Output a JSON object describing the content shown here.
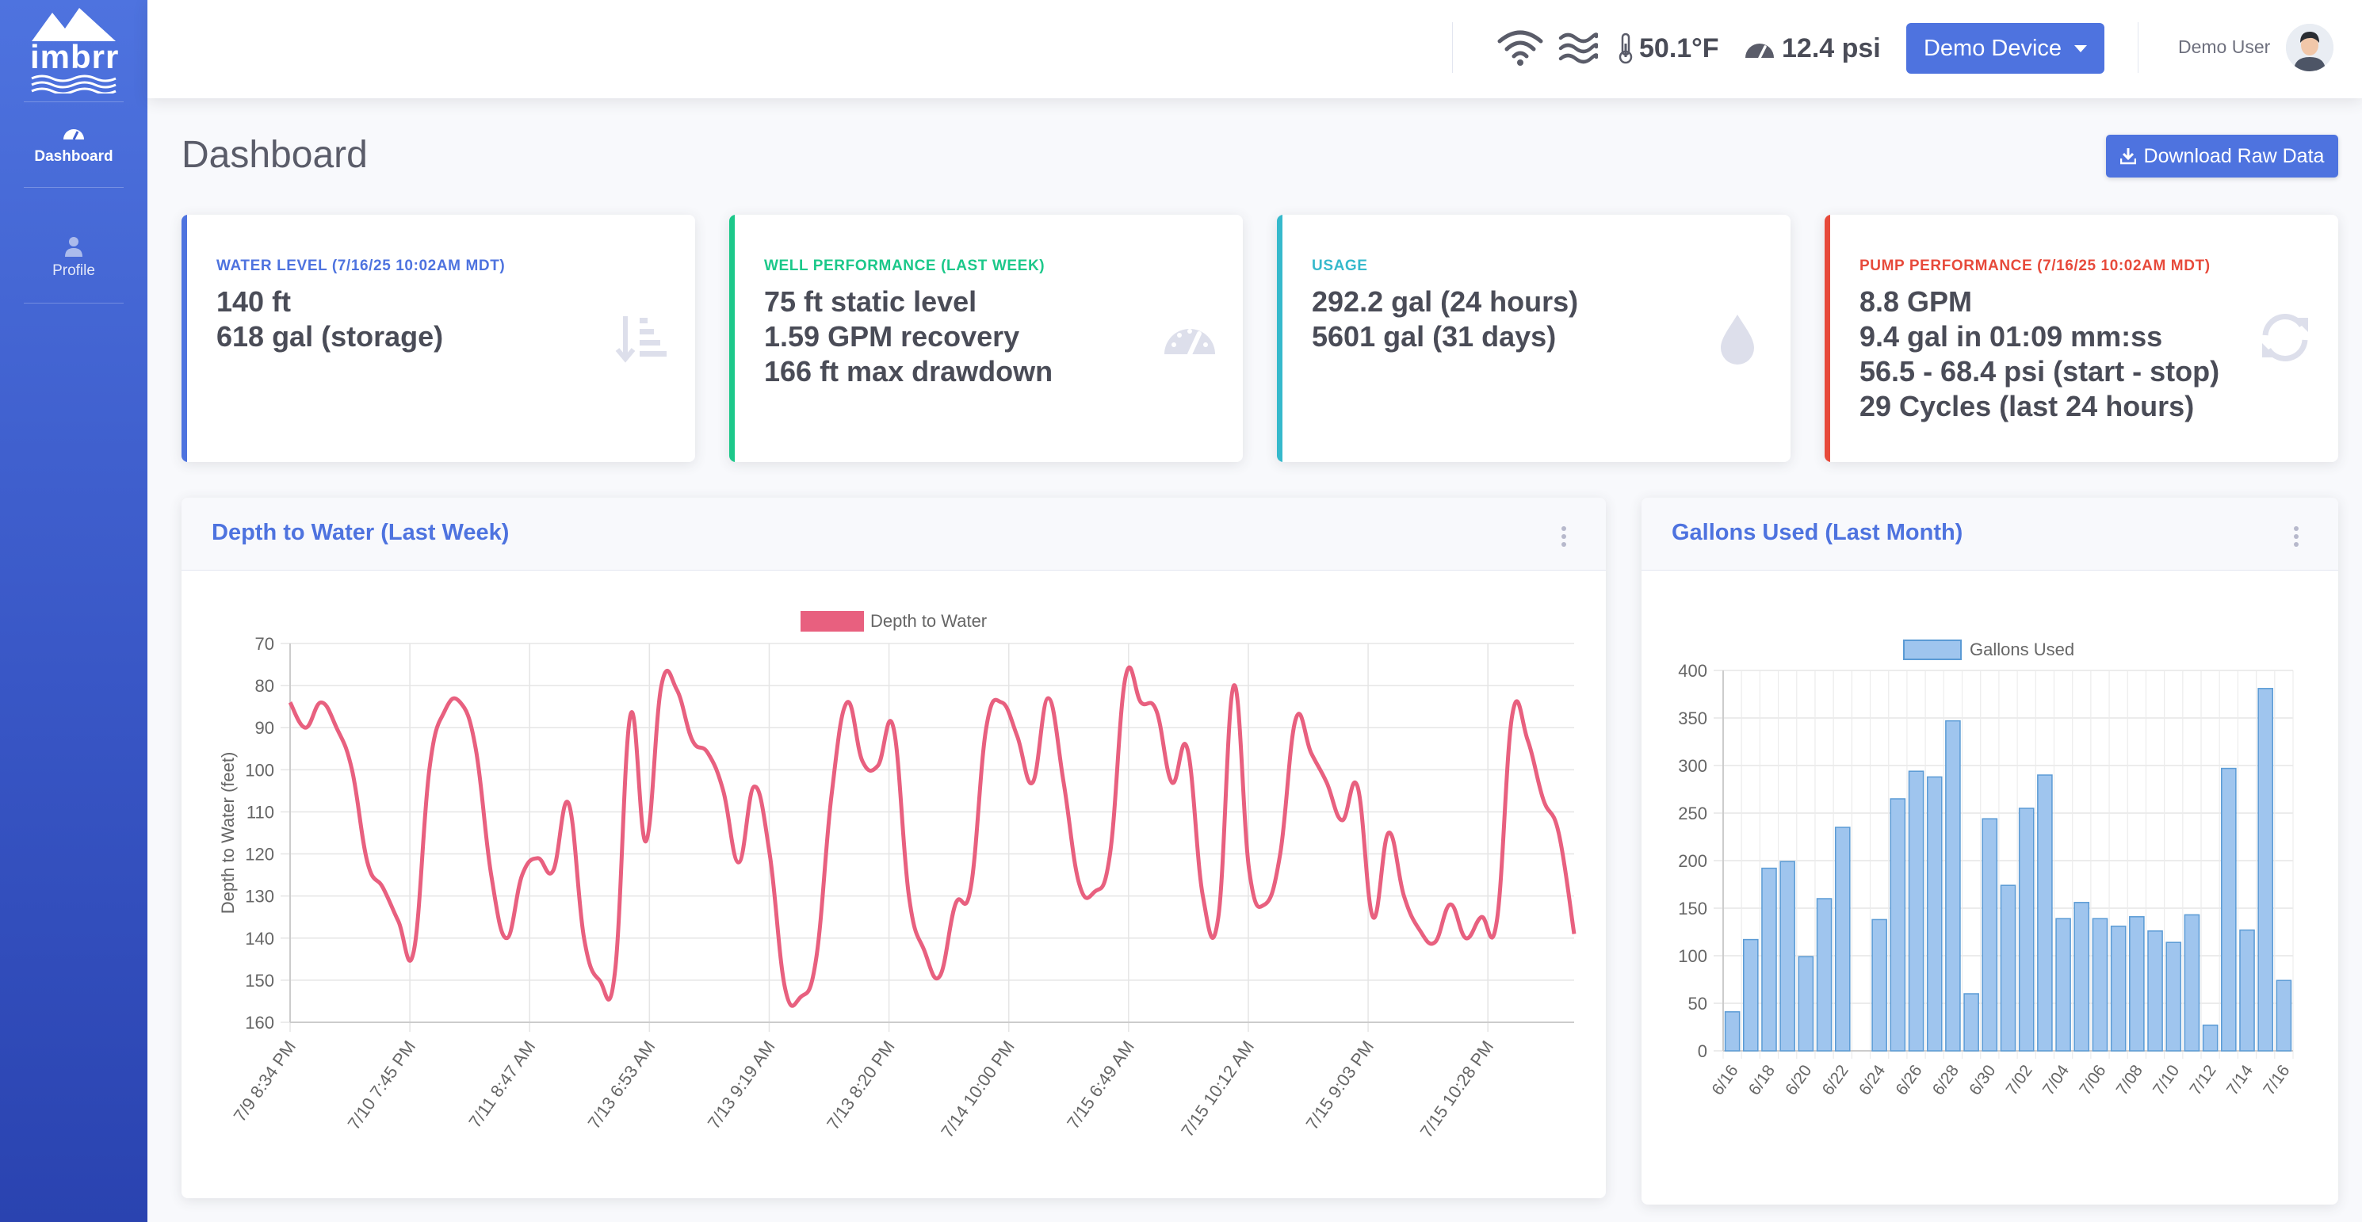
{
  "brand": {
    "name": "imbrr"
  },
  "sidebar": {
    "items": [
      {
        "label": "Dashboard",
        "icon": "gauge-icon"
      },
      {
        "label": "Profile",
        "icon": "user-icon"
      }
    ]
  },
  "topbar": {
    "temperature": "50.1°F",
    "pressure": "12.4 psi",
    "device_label": "Demo Device",
    "user_name": "Demo User"
  },
  "page": {
    "title": "Dashboard",
    "download_label": "Download Raw Data"
  },
  "cards": [
    {
      "title": "WATER LEVEL (7/16/25 10:02AM MDT)",
      "color": "#4e73df",
      "lines": [
        "140 ft",
        "618 gal (storage)"
      ],
      "icon": "sort-amount-icon"
    },
    {
      "title": "WELL PERFORMANCE (LAST WEEK)",
      "color": "#1cc88a",
      "lines": [
        "75 ft static level",
        "1.59 GPM recovery",
        "166 ft max drawdown"
      ],
      "icon": "gauge-icon"
    },
    {
      "title": "USAGE",
      "color": "#36b9cc",
      "lines": [
        "292.2 gal (24 hours)",
        "5601 gal (31 days)"
      ],
      "icon": "water-drop-icon"
    },
    {
      "title": "PUMP PERFORMANCE (7/16/25 10:02AM MDT)",
      "color": "#e74a3b",
      "lines": [
        "8.8 GPM",
        "9.4 gal in 01:09 mm:ss",
        "56.5 - 68.4 psi (start - stop)",
        "29 Cycles (last 24 hours)"
      ],
      "icon": "refresh-icon"
    }
  ],
  "panels": {
    "depth_title": "Depth to Water (Last Week)",
    "gallons_title": "Gallons Used (Last Month)"
  },
  "chart_data": [
    {
      "type": "line",
      "title": "",
      "ylabel": "Depth to Water (feet)",
      "xlabel": "",
      "ylim": [
        70,
        160
      ],
      "y_reversed": true,
      "yticks": [
        70,
        80,
        90,
        100,
        110,
        120,
        130,
        140,
        150,
        160
      ],
      "legend": "top",
      "grid": true,
      "color": "#e8607f",
      "x_tick_labels": [
        "7/9 8:34 PM",
        "7/10 7:45 PM",
        "7/11 8:47 AM",
        "7/13 6:53 AM",
        "7/13 9:19 AM",
        "7/13 8:20 PM",
        "7/14 10:00 PM",
        "7/15 6:49 AM",
        "7/15 10:12 AM",
        "7/15 9:03 PM",
        "7/15 10:28 PM"
      ],
      "series": [
        {
          "name": "Depth to Water",
          "values": [
            84,
            90,
            84,
            90,
            100,
            122,
            128,
            136,
            143,
            100,
            86,
            84,
            95,
            125,
            140,
            125,
            121,
            124,
            108,
            140,
            150,
            148,
            87,
            117,
            80,
            81,
            93,
            96,
            105,
            122,
            104,
            120,
            152,
            154,
            145,
            106,
            84,
            98,
            99,
            90,
            130,
            143,
            149,
            132,
            128,
            90,
            84,
            92,
            103,
            83,
            103,
            127,
            129,
            120,
            78,
            84,
            86,
            103,
            95,
            130,
            135,
            80,
            124,
            132,
            120,
            88,
            96,
            103,
            112,
            104,
            135,
            115,
            130,
            138,
            141,
            132,
            140,
            135,
            136,
            87,
            93,
            107,
            115,
            139
          ]
        }
      ]
    },
    {
      "type": "bar",
      "title": "",
      "xlabel": "",
      "ylabel": "",
      "ylim": [
        0,
        400
      ],
      "yticks": [
        0,
        50,
        100,
        150,
        200,
        250,
        300,
        350,
        400
      ],
      "legend": "top",
      "grid": true,
      "color": "#9fc5ee",
      "categories": [
        "6/16",
        "6/17",
        "6/18",
        "6/19",
        "6/20",
        "6/21",
        "6/22",
        "6/23",
        "6/24",
        "6/25",
        "6/26",
        "6/27",
        "6/28",
        "6/29",
        "6/30",
        "7/01",
        "7/02",
        "7/03",
        "7/04",
        "7/05",
        "7/06",
        "7/07",
        "7/08",
        "7/09",
        "7/10",
        "7/11",
        "7/12",
        "7/13",
        "7/14",
        "7/15",
        "7/16"
      ],
      "x_tick_labels": [
        "6/16",
        "6/18",
        "6/20",
        "6/22",
        "6/24",
        "6/26",
        "6/28",
        "6/30",
        "7/02",
        "7/04",
        "7/06",
        "7/08",
        "7/10",
        "7/12",
        "7/14",
        "7/16"
      ],
      "series": [
        {
          "name": "Gallons Used",
          "values": [
            41,
            117,
            192,
            199,
            99,
            160,
            235,
            0,
            138,
            265,
            294,
            288,
            347,
            60,
            244,
            174,
            255,
            290,
            139,
            156,
            139,
            131,
            141,
            126,
            114,
            143,
            27,
            297,
            127,
            381,
            74
          ]
        }
      ]
    }
  ]
}
